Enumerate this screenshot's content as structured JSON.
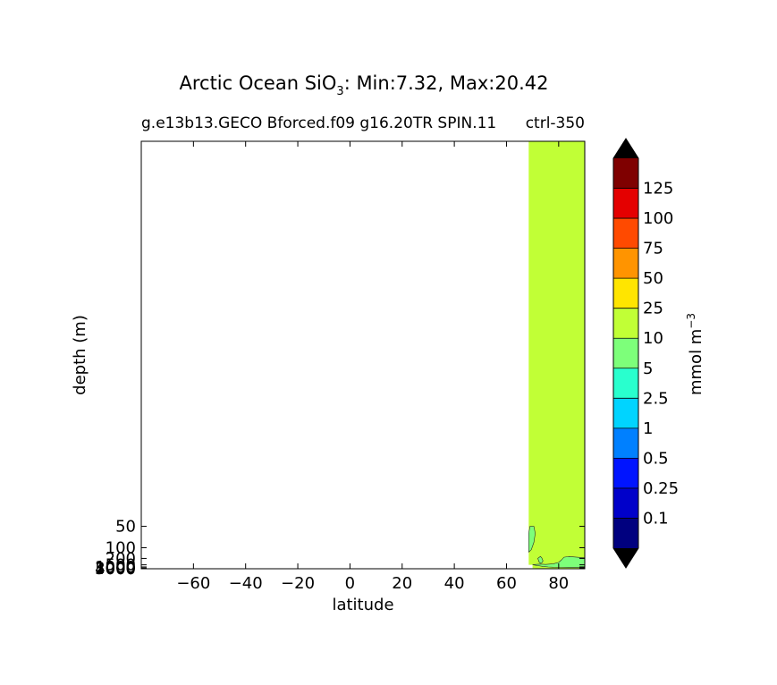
{
  "chart_data": {
    "type": "contourf",
    "title": "Arctic Ocean SiO",
    "title_sub": "3",
    "title_tail": ": Min:7.32, Max:20.42",
    "subtitle_left": "g.e13b13.GECO Bforced.f09 g16.20TR SPIN.11",
    "subtitle_right": "ctrl-350",
    "xlabel": "latitude",
    "ylabel": "depth (m)",
    "xlim": [
      -80,
      90
    ],
    "ylim_depth": [
      5.0,
      6000
    ],
    "y_scale": "reciprocal",
    "x_ticks": [
      -60,
      -40,
      -20,
      0,
      20,
      40,
      60,
      80
    ],
    "x_tick_labels": [
      "−60",
      "−40",
      "−20",
      "0",
      "20",
      "40",
      "60",
      "80"
    ],
    "y_ticks": [
      50,
      100,
      200,
      500,
      1000,
      2000,
      3000,
      4000,
      5000
    ],
    "y_tick_labels": [
      "50",
      "100",
      "200",
      "500",
      "1000",
      "2000",
      "3000",
      "4000",
      "5000"
    ],
    "colorbar": {
      "label": "mmol m",
      "label_exp": "−3",
      "extend": "both",
      "levels": [
        0.1,
        0.25,
        0.5,
        1,
        2.5,
        5,
        10,
        25,
        50,
        75,
        100,
        125
      ],
      "level_labels": [
        "0.1",
        "0.25",
        "0.5",
        "1",
        "2.5",
        "5",
        "10",
        "25",
        "50",
        "75",
        "100",
        "125"
      ],
      "colors": [
        "#00007f",
        "#0000ca",
        "#0014ff",
        "#0080ff",
        "#00d4ff",
        "#29ffce",
        "#7dff7a",
        "#c1ff36",
        "#ffe500",
        "#ff9400",
        "#ff4a00",
        "#e40000",
        "#7f0000"
      ],
      "under_color": "#000000",
      "over_color": "#000000"
    },
    "regions": [
      {
        "band": "10-25",
        "color": "#c1ff36",
        "outline": [
          [
            65.5,
            5.0
          ],
          [
            90,
            5.0
          ],
          [
            90,
            4100
          ],
          [
            83,
            4100
          ],
          [
            83,
            3600
          ],
          [
            80,
            3600
          ],
          [
            80,
            3500
          ],
          [
            72,
            3500
          ],
          [
            72,
            3100
          ],
          [
            71,
            3100
          ],
          [
            71,
            2300
          ],
          [
            70,
            2300
          ],
          [
            70,
            500
          ],
          [
            68.5,
            500
          ],
          [
            68.5,
            5.0
          ]
        ]
      },
      {
        "band": "5-10",
        "color": "#7dff7a",
        "outline": [
          [
            70,
            480
          ],
          [
            73,
            430
          ],
          [
            75,
            460
          ],
          [
            78,
            400
          ],
          [
            80,
            320
          ],
          [
            81,
            240
          ],
          [
            82,
            180
          ],
          [
            84,
            170
          ],
          [
            87,
            180
          ],
          [
            90,
            190
          ],
          [
            90,
            1350
          ],
          [
            87,
            1350
          ],
          [
            84,
            1350
          ],
          [
            81,
            1250
          ],
          [
            78,
            1150
          ],
          [
            76,
            1000
          ],
          [
            74,
            800
          ],
          [
            72,
            620
          ],
          [
            71,
            560
          ]
        ]
      },
      {
        "band": "5-10",
        "color": "#7dff7a",
        "outline": [
          [
            72,
            200
          ],
          [
            73,
            170
          ],
          [
            73.5,
            190
          ],
          [
            74,
            260
          ],
          [
            73.5,
            340
          ],
          [
            73,
            360
          ],
          [
            72.5,
            300
          ]
        ]
      },
      {
        "band": "5-10",
        "color": "#7dff7a",
        "outline": [
          [
            69,
            50
          ],
          [
            70.5,
            50
          ],
          [
            71,
            60
          ],
          [
            70.5,
            80
          ],
          [
            69.5,
            110
          ],
          [
            68.5,
            125
          ],
          [
            68.5,
            60
          ]
        ]
      }
    ]
  }
}
